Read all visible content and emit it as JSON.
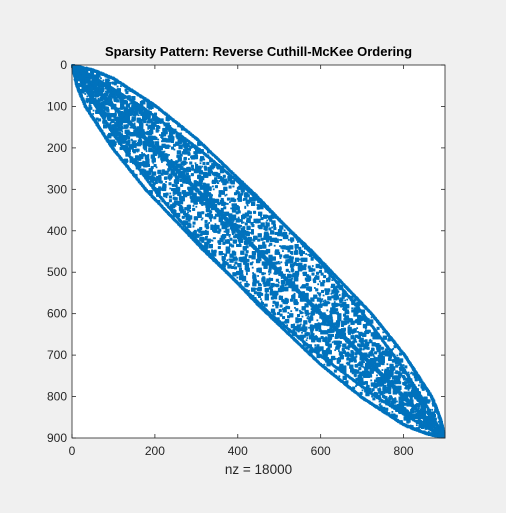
{
  "chart_data": {
    "type": "scatter",
    "subtype": "sparsity-pattern",
    "title": "Sparsity Pattern: Reverse Cuthill-McKee Ordering",
    "xlabel": "nz = 18000",
    "ylabel": "",
    "matrix_size": 900,
    "nnz": 18000,
    "xlim": [
      0,
      900
    ],
    "ylim": [
      0,
      900
    ],
    "y_axis_reversed": true,
    "xticks": [
      0,
      200,
      400,
      600,
      800
    ],
    "yticks": [
      0,
      100,
      200,
      300,
      400,
      500,
      600,
      700,
      800,
      900
    ],
    "bandwidth_by_row": [
      {
        "row": 0,
        "halfwidth": 2
      },
      {
        "row": 50,
        "halfwidth": 40
      },
      {
        "row": 100,
        "halfwidth": 70
      },
      {
        "row": 200,
        "halfwidth": 105
      },
      {
        "row": 300,
        "halfwidth": 125
      },
      {
        "row": 450,
        "halfwidth": 132
      },
      {
        "row": 600,
        "halfwidth": 125
      },
      {
        "row": 700,
        "halfwidth": 105
      },
      {
        "row": 800,
        "halfwidth": 70
      },
      {
        "row": 850,
        "halfwidth": 40
      },
      {
        "row": 900,
        "halfwidth": 2
      }
    ],
    "grid": false,
    "marker_color": "#0072bd"
  }
}
